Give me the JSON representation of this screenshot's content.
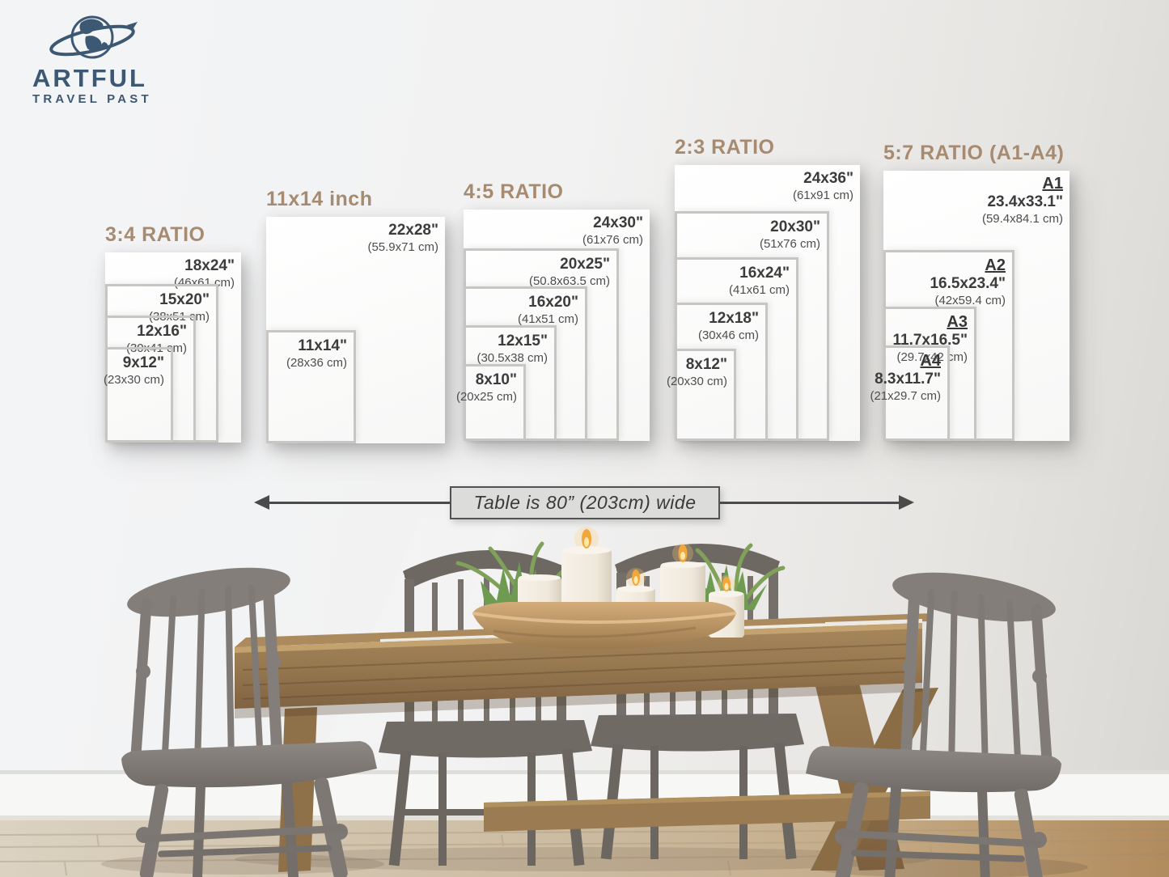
{
  "brand": {
    "line1": "ARTFUL",
    "line2": "TRAVEL PAST",
    "color": "#3c5873",
    "icon": "globe-orbit-icon"
  },
  "accent_color": "#a78b71",
  "panels": [
    {
      "title": "3:4 RATIO",
      "sizes": [
        {
          "inches": "18x24\"",
          "cm": "(46x61 cm)",
          "w_in": 18,
          "h_in": 24
        },
        {
          "inches": "15x20\"",
          "cm": "(38x51 cm)",
          "w_in": 15,
          "h_in": 20
        },
        {
          "inches": "12x16\"",
          "cm": "(30x41 cm)",
          "w_in": 12,
          "h_in": 16
        },
        {
          "inches": "9x12\"",
          "cm": "(23x30 cm)",
          "w_in": 9,
          "h_in": 12
        }
      ]
    },
    {
      "title": "11x14 inch",
      "sizes": [
        {
          "inches": "22x28\"",
          "cm": "(55.9x71 cm)",
          "w_in": 22,
          "h_in": 28
        },
        {
          "inches": "11x14\"",
          "cm": "(28x36 cm)",
          "w_in": 11,
          "h_in": 14
        }
      ]
    },
    {
      "title": "4:5 RATIO",
      "sizes": [
        {
          "inches": "24x30\"",
          "cm": "(61x76 cm)",
          "w_in": 24,
          "h_in": 30
        },
        {
          "inches": "20x25\"",
          "cm": "(50.8x63.5 cm)",
          "w_in": 20,
          "h_in": 25
        },
        {
          "inches": "16x20\"",
          "cm": "(41x51 cm)",
          "w_in": 16,
          "h_in": 20
        },
        {
          "inches": "12x15\"",
          "cm": "(30.5x38 cm)",
          "w_in": 12,
          "h_in": 15
        },
        {
          "inches": "8x10\"",
          "cm": "(20x25 cm)",
          "w_in": 8,
          "h_in": 10
        }
      ]
    },
    {
      "title": "2:3 RATIO",
      "sizes": [
        {
          "inches": "24x36\"",
          "cm": "(61x91 cm)",
          "w_in": 24,
          "h_in": 36
        },
        {
          "inches": "20x30\"",
          "cm": "(51x76 cm)",
          "w_in": 20,
          "h_in": 30
        },
        {
          "inches": "16x24\"",
          "cm": "(41x61 cm)",
          "w_in": 16,
          "h_in": 24
        },
        {
          "inches": "12x18\"",
          "cm": "(30x46 cm)",
          "w_in": 12,
          "h_in": 18
        },
        {
          "inches": "8x12\"",
          "cm": "(20x30 cm)",
          "w_in": 8,
          "h_in": 12
        }
      ]
    },
    {
      "title": "5:7 RATIO (A1-A4)",
      "sizes": [
        {
          "name": "A1",
          "inches": "23.4x33.1\"",
          "cm": "(59.4x84.1 cm)",
          "w_in": 23.4,
          "h_in": 33.1
        },
        {
          "name": "A2",
          "inches": "16.5x23.4\"",
          "cm": "(42x59.4 cm)",
          "w_in": 16.5,
          "h_in": 23.4
        },
        {
          "name": "A3",
          "inches": "11.7x16.5\"",
          "cm": "(29.7x42 cm)",
          "w_in": 11.7,
          "h_in": 16.5
        },
        {
          "name": "A4",
          "inches": "8.3x11.7\"",
          "cm": "(21x29.7 cm)",
          "w_in": 8.3,
          "h_in": 11.7
        }
      ]
    }
  ],
  "table_label": {
    "text": "Table is 80” (203cm) wide"
  },
  "scene": {
    "palette": {
      "wall_left": "#f4f5f6",
      "wall_right": "#d9d8d4",
      "table_wood": "#9a7b52",
      "chair_gray": "#7d7873",
      "floor_left": "#d9cfbc",
      "floor_right": "#b98f62",
      "candle": "#f2ede3",
      "plant_green": "#7fa159",
      "bowl": "#c8a271"
    }
  }
}
